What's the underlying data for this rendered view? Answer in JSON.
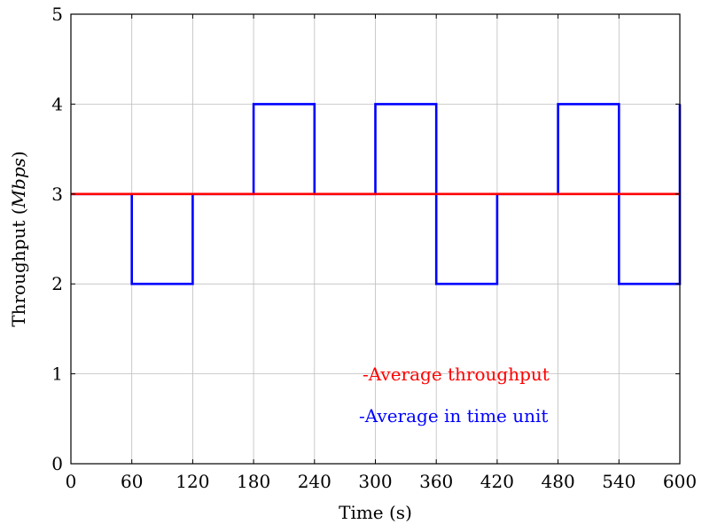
{
  "chart_data": {
    "type": "line",
    "title": "",
    "xlabel": "Time (s)",
    "ylabel_prefix": "Throughput (",
    "ylabel_unit": "Mbps",
    "ylabel_suffix": ")",
    "xlim": [
      0,
      600
    ],
    "ylim": [
      0,
      5
    ],
    "x_ticks": [
      0,
      60,
      120,
      180,
      240,
      300,
      360,
      420,
      480,
      540,
      600
    ],
    "y_ticks": [
      0,
      1,
      2,
      3,
      4,
      5
    ],
    "grid": true,
    "legend_placement": "bottom-right",
    "series": [
      {
        "name": "-Average in time unit",
        "color": "#0000ff",
        "step": true,
        "x": [
          0,
          60,
          120,
          180,
          240,
          300,
          360,
          420,
          480,
          540,
          600
        ],
        "y": [
          3,
          2,
          3,
          4,
          3,
          4,
          2,
          3,
          4,
          2,
          4
        ]
      },
      {
        "name": "-Average throughput",
        "color": "#ff0000",
        "step": false,
        "x": [
          0,
          600
        ],
        "y": [
          3,
          3
        ]
      }
    ]
  }
}
